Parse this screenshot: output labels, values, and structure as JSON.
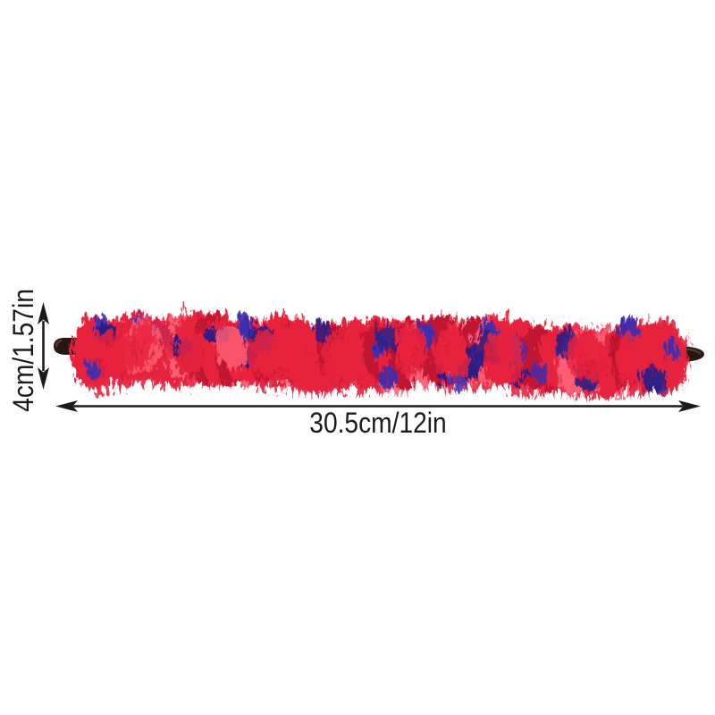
{
  "page": {
    "background": "#ffffff"
  },
  "product": {
    "name": "red-blue-fuzzy-cleaning-brush",
    "colors": {
      "red_base": "#e7243e",
      "red_dark": "#c11330",
      "red_deep": "#9d0e26",
      "red_light": "#fb5d72",
      "blue": "#3a2fb0",
      "blue_dark": "#281f86",
      "tip": "#271712",
      "tip_light": "#6b4636"
    }
  },
  "dimensions": {
    "length_label": "30.5cm/12in",
    "height_label": "4cm/1.57in",
    "arrow_color": "#1b1b1b",
    "text_color": "#1b1b1b"
  }
}
